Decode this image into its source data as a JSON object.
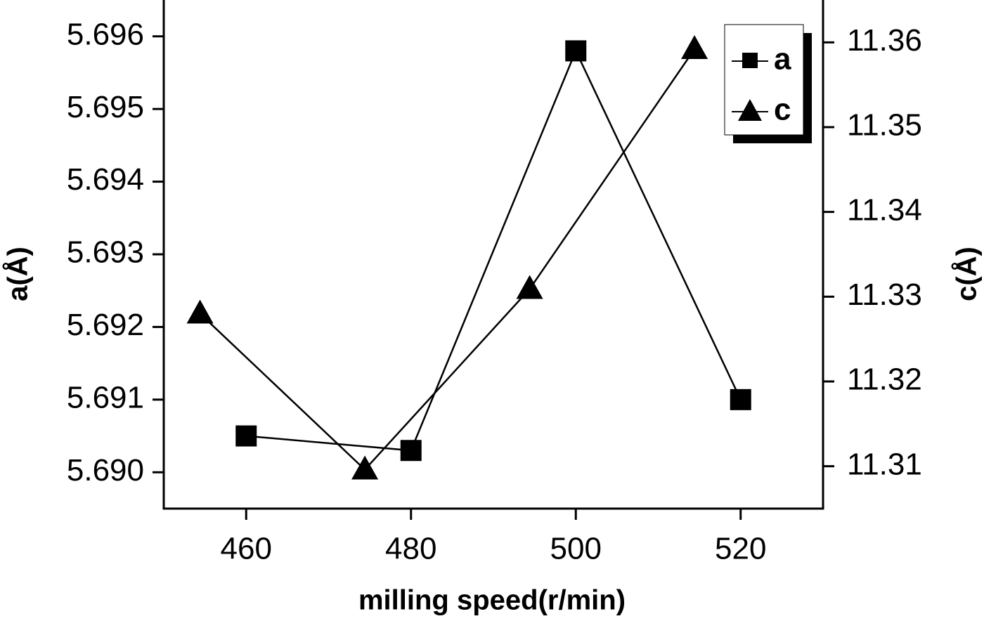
{
  "chart_data": {
    "type": "line",
    "x_label": "milling speed(r/min)",
    "y_label": "a(Å)",
    "y2_label": "c(Å)",
    "xlim": [
      450,
      530
    ],
    "xticks": [
      460,
      480,
      500,
      520
    ],
    "ylim": [
      5.6895,
      5.6965
    ],
    "yticks": [
      {
        "value": 5.69,
        "label": "5.690"
      },
      5.691,
      5.692,
      5.693,
      5.694,
      5.695,
      5.696
    ],
    "y2lim": [
      11.305,
      11.365
    ],
    "y2ticks": [
      11.31,
      11.32,
      11.33,
      11.34,
      11.35,
      11.36
    ],
    "legend": "upper right",
    "series": [
      {
        "name": "a",
        "color": "#000000",
        "marker": "square",
        "x": [
          460,
          480,
          500,
          520
        ],
        "values": [
          5.6905,
          5.6903,
          5.6958,
          5.691
        ]
      },
      {
        "name": "c",
        "color": "#000000",
        "marker": "triangle",
        "axis": "y2",
        "x": [
          454.4,
          474.4,
          494.4,
          514.4
        ],
        "values": [
          11.328,
          11.3096,
          11.3309,
          11.3592
        ]
      }
    ]
  }
}
